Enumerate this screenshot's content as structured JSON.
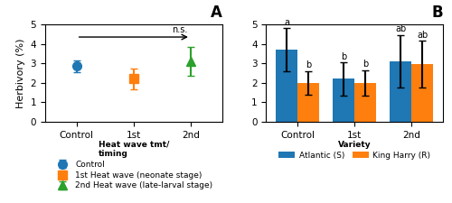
{
  "chart_data": [
    {
      "type": "scatter",
      "title": "A",
      "y_label": "Herbivory (%)",
      "categories": [
        "Control",
        "1st",
        "2nd"
      ],
      "series": [
        {
          "name": "Control",
          "marker": "circle",
          "values": [
            2.85,
            null,
            null
          ],
          "errors": [
            0.3,
            null,
            null
          ]
        },
        {
          "name": "1st Heat wave (neonate stage)",
          "marker": "square",
          "values": [
            null,
            2.2,
            null
          ],
          "errors": [
            null,
            0.55,
            null
          ]
        },
        {
          "name": "2nd Heat wave (late-larval stage)",
          "marker": "triangle",
          "values": [
            null,
            null,
            3.1
          ],
          "errors": [
            null,
            null,
            0.75
          ]
        }
      ],
      "legend_title": "Heat wave tmt/\ntiming",
      "legend": "upper center",
      "annotations": [
        {
          "text": "n.s.",
          "y": 4.35
        }
      ],
      "ylim": [
        0,
        5
      ],
      "yticks": [
        0,
        1,
        2,
        3,
        4,
        5
      ]
    },
    {
      "type": "bar",
      "title": "B",
      "categories": [
        "Control",
        "1st",
        "2nd"
      ],
      "series": [
        {
          "name": "Atlantic (S)",
          "values": [
            3.7,
            2.2,
            3.1
          ],
          "errors": [
            1.1,
            0.85,
            1.35
          ],
          "letters": [
            "a",
            "b",
            "ab"
          ]
        },
        {
          "name": "King Harry (R)",
          "values": [
            2.0,
            2.0,
            2.95
          ],
          "errors": [
            0.6,
            0.65,
            1.2
          ],
          "letters": [
            "b",
            "b",
            "ab"
          ]
        }
      ],
      "legend_title": "Variety",
      "legend": "upper center",
      "ylim": [
        0,
        5
      ],
      "yticks": [
        0,
        1,
        2,
        3,
        4,
        5
      ]
    }
  ]
}
